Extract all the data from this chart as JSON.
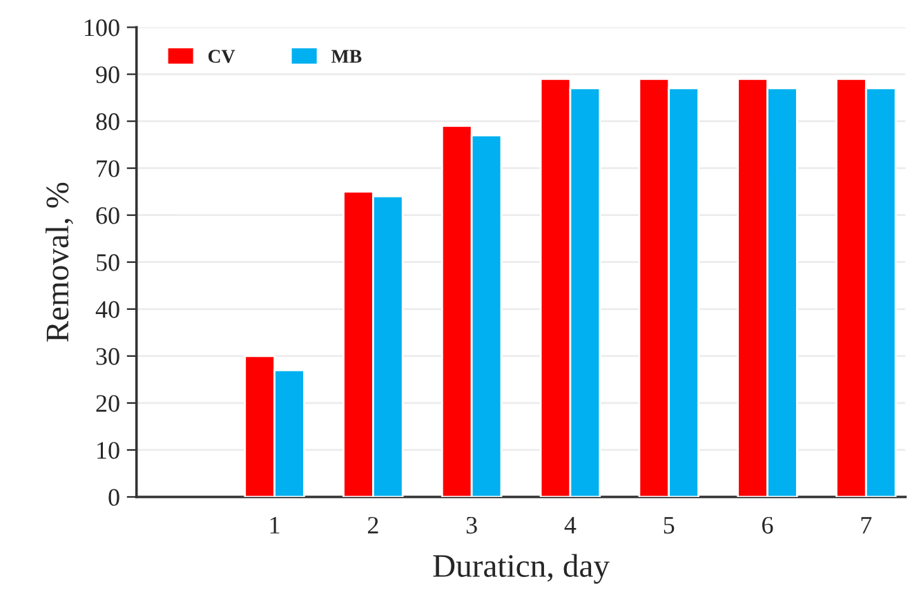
{
  "chart_data": {
    "type": "bar",
    "xlabel": "Duraticn, day",
    "ylabel": "Removal, %",
    "categories": [
      null,
      "1",
      "2",
      "3",
      "4",
      "5",
      "6",
      "7"
    ],
    "series": [
      {
        "name": "CV",
        "color": "#ff0000",
        "values": [
          null,
          30,
          65,
          79,
          89,
          89,
          89,
          89
        ]
      },
      {
        "name": "MB",
        "color": "#00b0f0",
        "values": [
          null,
          27,
          64,
          77,
          87,
          87,
          87,
          87
        ]
      }
    ],
    "ylim": [
      0,
      100
    ],
    "yticks": [
      0,
      10,
      20,
      30,
      40,
      50,
      60,
      70,
      80,
      90,
      100
    ],
    "grid": "y",
    "legend": "top left"
  }
}
